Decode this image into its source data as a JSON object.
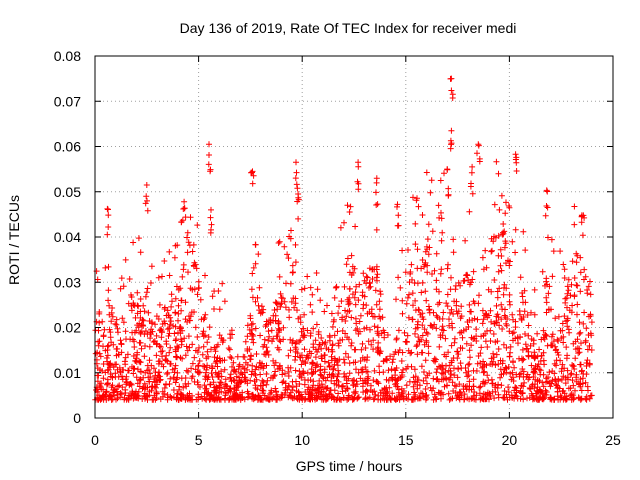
{
  "chart_data": {
    "type": "scatter",
    "title": "Day 136 of 2019, Rate Of TEC Index for receiver medi",
    "xlabel": "GPS time / hours",
    "ylabel": "ROTI / TECUs",
    "xlim": [
      0,
      25
    ],
    "ylim": [
      0,
      0.08
    ],
    "xticks": [
      "0",
      "5",
      "10",
      "15",
      "20",
      "25"
    ],
    "yticks": [
      "0",
      "0.01",
      "0.02",
      "0.03",
      "0.04",
      "0.05",
      "0.06",
      "0.07",
      "0.08"
    ],
    "xtick_values": [
      0,
      5,
      10,
      15,
      20,
      25
    ],
    "ytick_values": [
      0,
      0.01,
      0.02,
      0.03,
      0.04,
      0.05,
      0.06,
      0.07,
      0.08
    ],
    "grid": true,
    "marker": "+",
    "series": [
      {
        "name": "ROTI",
        "color": "#ff0000",
        "data_extent": {
          "x_min": 0.0,
          "x_max": 23.98,
          "typical_y_min": 0.004,
          "typical_y_max": 0.035
        },
        "notable_points": [
          {
            "x": 17.2,
            "y": 0.075
          },
          {
            "x": 17.2,
            "y": 0.0635
          },
          {
            "x": 5.5,
            "y": 0.0605
          },
          {
            "x": 18.5,
            "y": 0.0605
          },
          {
            "x": 20.3,
            "y": 0.0583
          },
          {
            "x": 9.7,
            "y": 0.0565
          },
          {
            "x": 12.7,
            "y": 0.0565
          },
          {
            "x": 18.2,
            "y": 0.0555
          },
          {
            "x": 17.0,
            "y": 0.055
          },
          {
            "x": 7.6,
            "y": 0.0545
          },
          {
            "x": 13.6,
            "y": 0.053
          },
          {
            "x": 2.5,
            "y": 0.0515
          },
          {
            "x": 21.8,
            "y": 0.0503
          },
          {
            "x": 9.8,
            "y": 0.0495
          },
          {
            "x": 4.3,
            "y": 0.0478
          },
          {
            "x": 0.6,
            "y": 0.0462
          },
          {
            "x": 5.6,
            "y": 0.046
          },
          {
            "x": 23.5,
            "y": 0.0448
          },
          {
            "x": 14.6,
            "y": 0.0472
          }
        ]
      }
    ]
  }
}
